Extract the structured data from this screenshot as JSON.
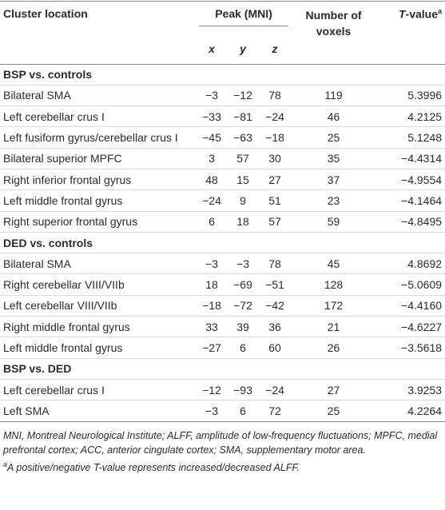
{
  "table": {
    "header": {
      "cluster": "Cluster location",
      "peak": "Peak (MNI)",
      "voxels": "Number of voxels",
      "t_italic": "T",
      "t_rest": "-value",
      "t_sup": "a",
      "x": "x",
      "y": "y",
      "z": "z"
    },
    "groups": [
      {
        "title": "BSP vs. controls",
        "rows": [
          [
            "Bilateral SMA",
            "−3",
            "−12",
            "78",
            "119",
            "5.3996"
          ],
          [
            "Left cerebellar crus I",
            "−33",
            "−81",
            "−24",
            "46",
            "4.2125"
          ],
          [
            "Left fusiform gyrus/cerebellar crus I",
            "−45",
            "−63",
            "−18",
            "25",
            "5.1248"
          ],
          [
            "Bilateral superior MPFC",
            "3",
            "57",
            "30",
            "35",
            "−4.4314"
          ],
          [
            "Right inferior frontal gyrus",
            "48",
            "15",
            "27",
            "37",
            "−4.9554"
          ],
          [
            "Left middle frontal gyrus",
            "−24",
            "9",
            "51",
            "23",
            "−4.1464"
          ],
          [
            "Right superior frontal gyrus",
            "6",
            "18",
            "57",
            "59",
            "−4.8495"
          ]
        ]
      },
      {
        "title": "DED vs. controls",
        "rows": [
          [
            "Bilateral SMA",
            "−3",
            "−3",
            "78",
            "45",
            "4.8692"
          ],
          [
            "Right cerebellar VIII/VIIb",
            "18",
            "−69",
            "−51",
            "128",
            "−5.0609"
          ],
          [
            "Left cerebellar VIII/VIIb",
            "−18",
            "−72",
            "−42",
            "172",
            "−4.4160"
          ],
          [
            "Right middle frontal gyrus",
            "33",
            "39",
            "36",
            "21",
            "−4.6227"
          ],
          [
            "Left middle frontal gyrus",
            "−27",
            "6",
            "60",
            "26",
            "−3.5618"
          ]
        ]
      },
      {
        "title": "BSP vs. DED",
        "rows": [
          [
            "Left cerebellar crus I",
            "−12",
            "−93",
            "−24",
            "27",
            "3.9253"
          ],
          [
            "Left SMA",
            "−3",
            "6",
            "72",
            "25",
            "4.2264"
          ]
        ]
      }
    ]
  },
  "footnotes": {
    "abbrev": "MNI, Montreal Neurological Institute; ALFF, amplitude of low-frequency fluctuations; MPFC, medial prefrontal cortex; ACC, anterior cingulate cortex; SMA, supplementary motor area.",
    "note_mark": "a",
    "note": "A positive/negative T-value represents increased/decreased ALFF."
  }
}
